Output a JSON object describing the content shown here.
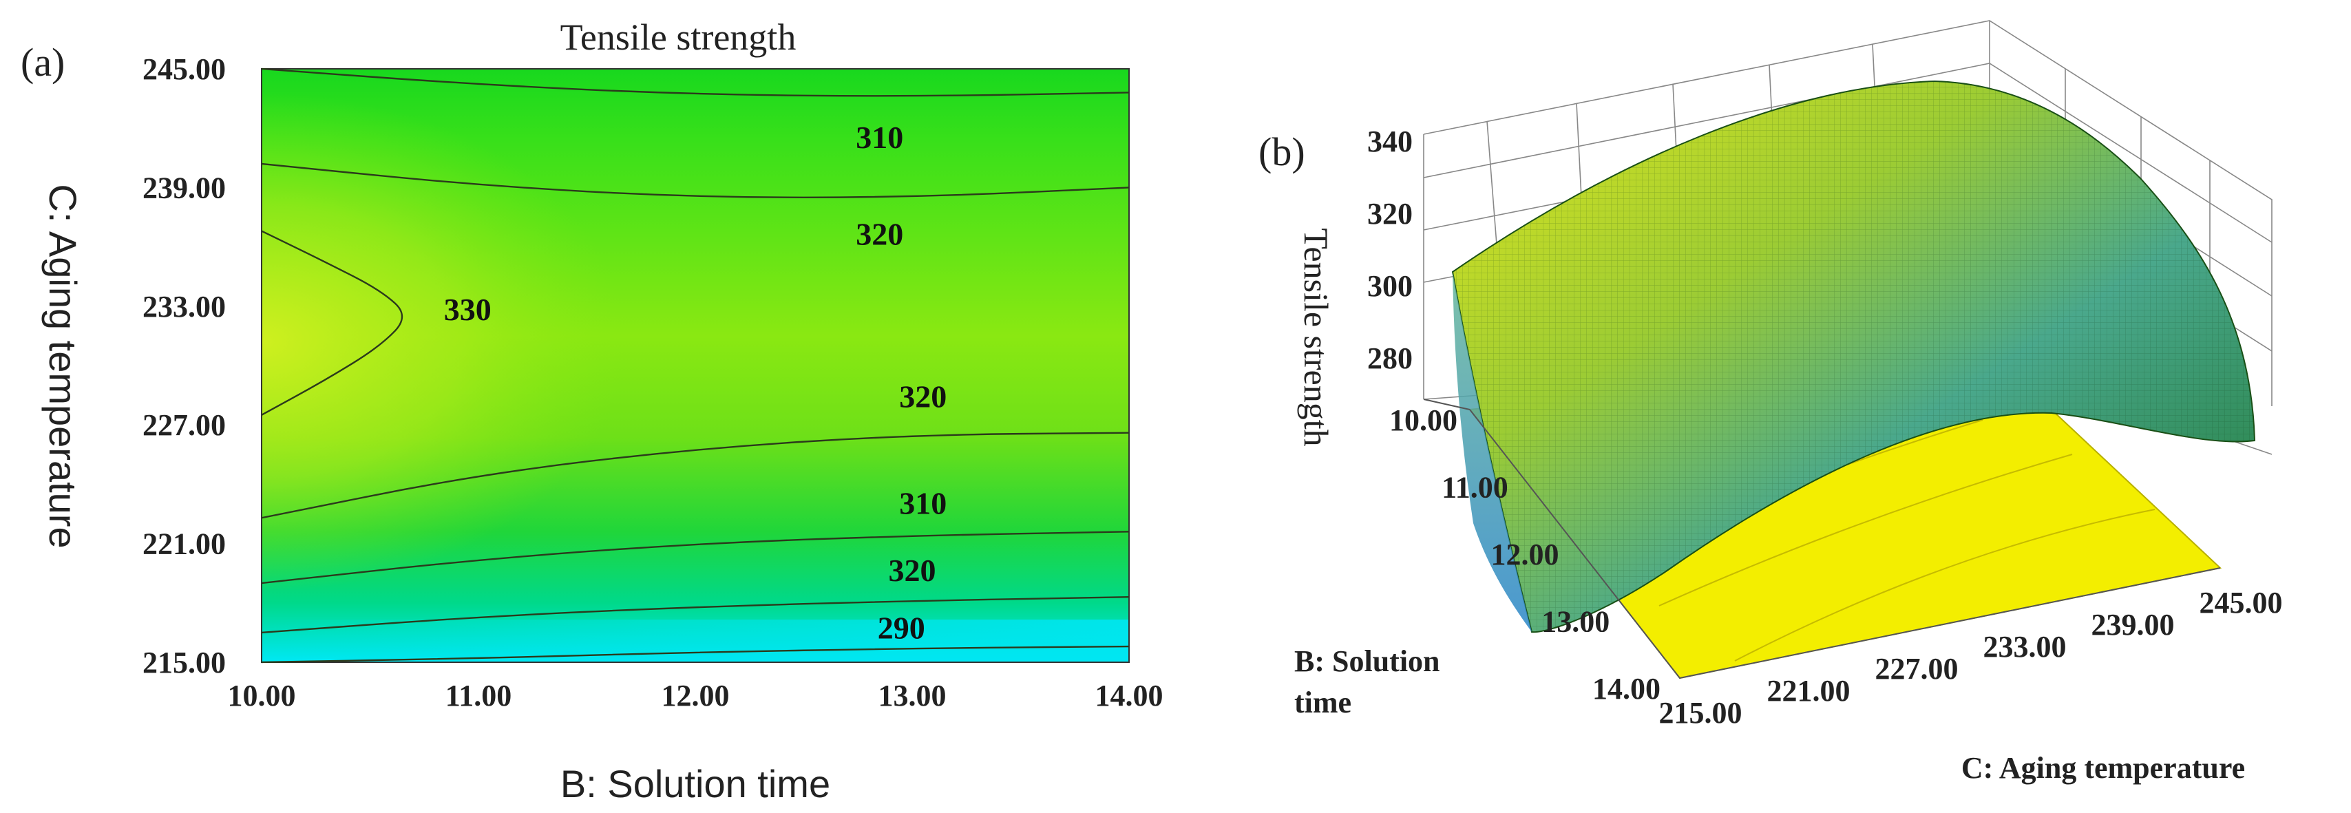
{
  "panel_a": {
    "label": "(a)",
    "chart_data": {
      "type": "contour",
      "title": "Tensile strength",
      "xlabel": "B: Solution time",
      "ylabel": "C: Aging temperature",
      "xlim": [
        10,
        14
      ],
      "ylim": [
        215,
        245
      ],
      "x_ticks": [
        "10.00",
        "11.00",
        "12.00",
        "13.00",
        "14.00"
      ],
      "y_ticks": [
        "215.00",
        "221.00",
        "227.00",
        "233.00",
        "239.00",
        "245.00"
      ],
      "contours": [
        {
          "level_label": "310",
          "points": [
            [
              10,
              245
            ],
            [
              11,
              244.2
            ],
            [
              12,
              243.7
            ],
            [
              13,
              243.6
            ],
            [
              14,
              243.8
            ]
          ]
        },
        {
          "level_label": "320",
          "points": [
            [
              10,
              240.2
            ],
            [
              11,
              239.1
            ],
            [
              12,
              238.5
            ],
            [
              13,
              238.5
            ],
            [
              14,
              239.0
            ]
          ]
        },
        {
          "level_label": "330",
          "points": [
            [
              10,
              236.8
            ],
            [
              10.3,
              235.2
            ],
            [
              10.55,
              233.8
            ],
            [
              10.68,
              232.5
            ],
            [
              10.55,
              231.0
            ],
            [
              10.3,
              229.3
            ],
            [
              10,
              227.5
            ]
          ]
        },
        {
          "level_label": "320",
          "points": [
            [
              10,
              222.3
            ],
            [
              11,
              224.5
            ],
            [
              12,
              225.8
            ],
            [
              13,
              226.5
            ],
            [
              14,
              226.6
            ]
          ]
        },
        {
          "level_label": "310",
          "points": [
            [
              10,
              219.0
            ],
            [
              11,
              220.2
            ],
            [
              12,
              221.0
            ],
            [
              13,
              221.4
            ],
            [
              14,
              221.6
            ]
          ]
        },
        {
          "level_label": "320",
          "points": [
            [
              10,
              216.5
            ],
            [
              11,
              217.3
            ],
            [
              12,
              217.8
            ],
            [
              13,
              218.1
            ],
            [
              14,
              218.3
            ]
          ]
        },
        {
          "level_label": "290",
          "points": [
            [
              10,
              215.0
            ],
            [
              11,
              215.2
            ],
            [
              12,
              215.5
            ],
            [
              13,
              215.7
            ],
            [
              14,
              215.8
            ]
          ]
        }
      ],
      "contour_labels": [
        {
          "text": "310",
          "x": 12.85,
          "y": 241.0
        },
        {
          "text": "320",
          "x": 12.85,
          "y": 236.1
        },
        {
          "text": "330",
          "x": 10.95,
          "y": 232.3
        },
        {
          "text": "320",
          "x": 13.05,
          "y": 227.9
        },
        {
          "text": "310",
          "x": 13.05,
          "y": 222.5
        },
        {
          "text": "320",
          "x": 13.0,
          "y": 219.1
        },
        {
          "text": "290",
          "x": 12.95,
          "y": 216.2
        }
      ],
      "colormap": [
        "#00e6ff",
        "#00e08a",
        "#2fe01c",
        "#8aea12",
        "#c8f01a"
      ]
    }
  },
  "panel_b": {
    "label": "(b)",
    "chart_data": {
      "type": "surface3d",
      "zlabel": "Tensile strength",
      "zlim": [
        280,
        340
      ],
      "z_ticks": [
        "340",
        "320",
        "300",
        "280"
      ],
      "b_axis_label": "B: Solution time",
      "b_ticks": [
        "10.00",
        "11.00",
        "12.00",
        "13.00",
        "14.00"
      ],
      "c_axis_label": "C: Aging temperature",
      "c_ticks": [
        "215.00",
        "221.00",
        "227.00",
        "233.00",
        "239.00",
        "245.00"
      ],
      "surface_corners": [
        {
          "b": 10,
          "c": 215,
          "z": 300
        },
        {
          "b": 10,
          "c": 245,
          "z": 288
        },
        {
          "b": 14,
          "c": 245,
          "z": 276
        },
        {
          "b": 14,
          "c": 215,
          "z": 266
        }
      ],
      "peak": {
        "c": 233,
        "z": 332
      },
      "surface_colors": [
        "#d6e21b",
        "#7ec34a",
        "#3aa58d",
        "#1f6a14"
      ],
      "floor_color": "#f2ee00"
    }
  }
}
